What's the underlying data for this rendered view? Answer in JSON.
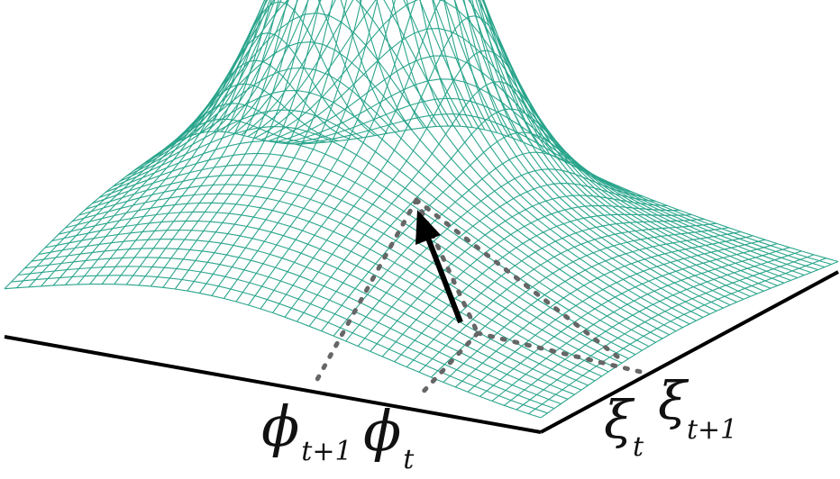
{
  "colors": {
    "mesh": "#2aa58c",
    "axis": "#000000",
    "dots": "#666666",
    "arrow": "#000000"
  },
  "labels": {
    "phi_next": {
      "symbol": "ϕ",
      "subscript": "t+1"
    },
    "phi_now": {
      "symbol": "ϕ",
      "subscript": "t"
    },
    "xi_now": {
      "symbol": "ξ",
      "subscript": "t"
    },
    "xi_next": {
      "symbol": "ξ",
      "subscript": "t+1"
    }
  }
}
